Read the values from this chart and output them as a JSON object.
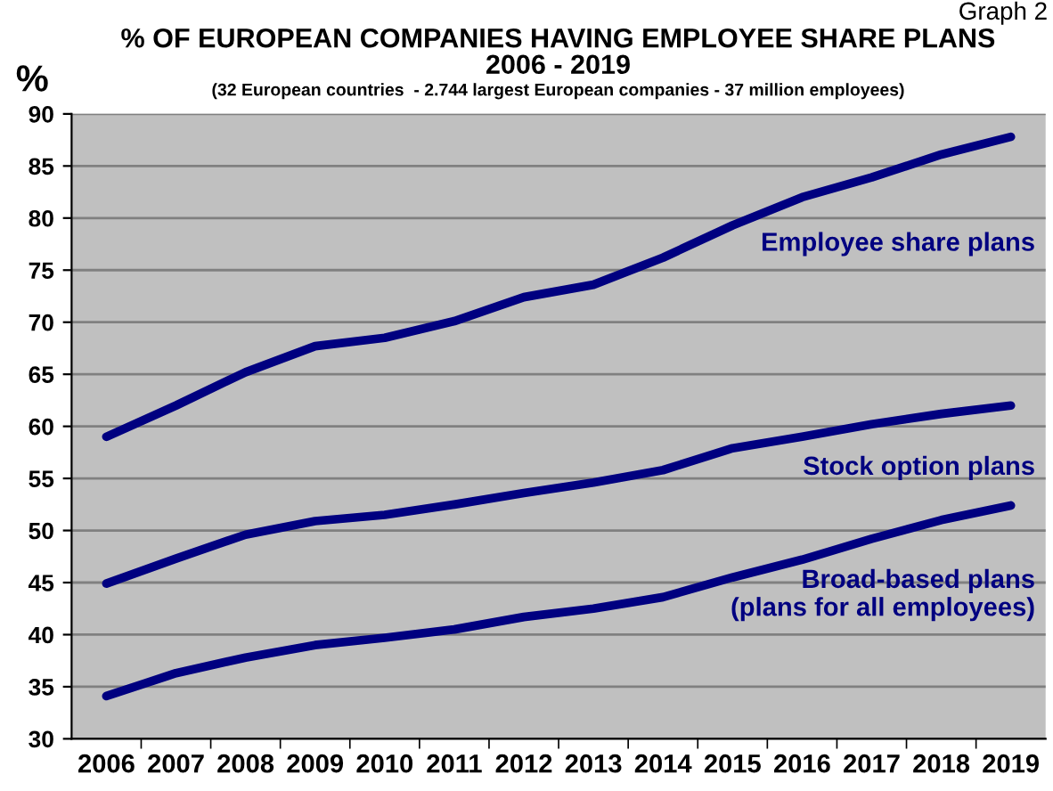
{
  "chart_data": {
    "type": "line",
    "title": "% OF EUROPEAN COMPANIES HAVING EMPLOYEE SHARE PLANS\n2006 - 2019",
    "subtitle": "(32 European countries  - 2.744 largest European companies - 37 million employees)",
    "ylabel": "%",
    "annotations": [
      "Graph 2"
    ],
    "categories": [
      "2006",
      "2007",
      "2008",
      "2009",
      "2010",
      "2011",
      "2012",
      "2013",
      "2014",
      "2015",
      "2016",
      "2017",
      "2018",
      "2019"
    ],
    "series": [
      {
        "name": "Employee share plans",
        "color": "#000080",
        "values": [
          59,
          62,
          65.2,
          67.7,
          68.5,
          70.1,
          72.4,
          73.6,
          76.2,
          79.3,
          82,
          83.9,
          86.1,
          87.8
        ]
      },
      {
        "name": "Stock option plans",
        "color": "#000080",
        "values": [
          44.9,
          47.3,
          49.6,
          50.9,
          51.5,
          52.5,
          53.6,
          54.6,
          55.8,
          57.9,
          59,
          60.2,
          61.2,
          62
        ]
      },
      {
        "name": "Broad-based plans\n(plans for all employees)",
        "color": "#000080",
        "values": [
          34.1,
          36.3,
          37.8,
          39.0,
          39.7,
          40.5,
          41.7,
          42.5,
          43.6,
          45.5,
          47.2,
          49.2,
          51,
          52.4
        ]
      }
    ],
    "ylim": [
      30,
      90
    ],
    "yticks": [
      30,
      35,
      40,
      45,
      50,
      55,
      60,
      65,
      70,
      75,
      80,
      85,
      90
    ],
    "grid": "y",
    "legend": false,
    "marker": "none",
    "line_style": "solid"
  }
}
